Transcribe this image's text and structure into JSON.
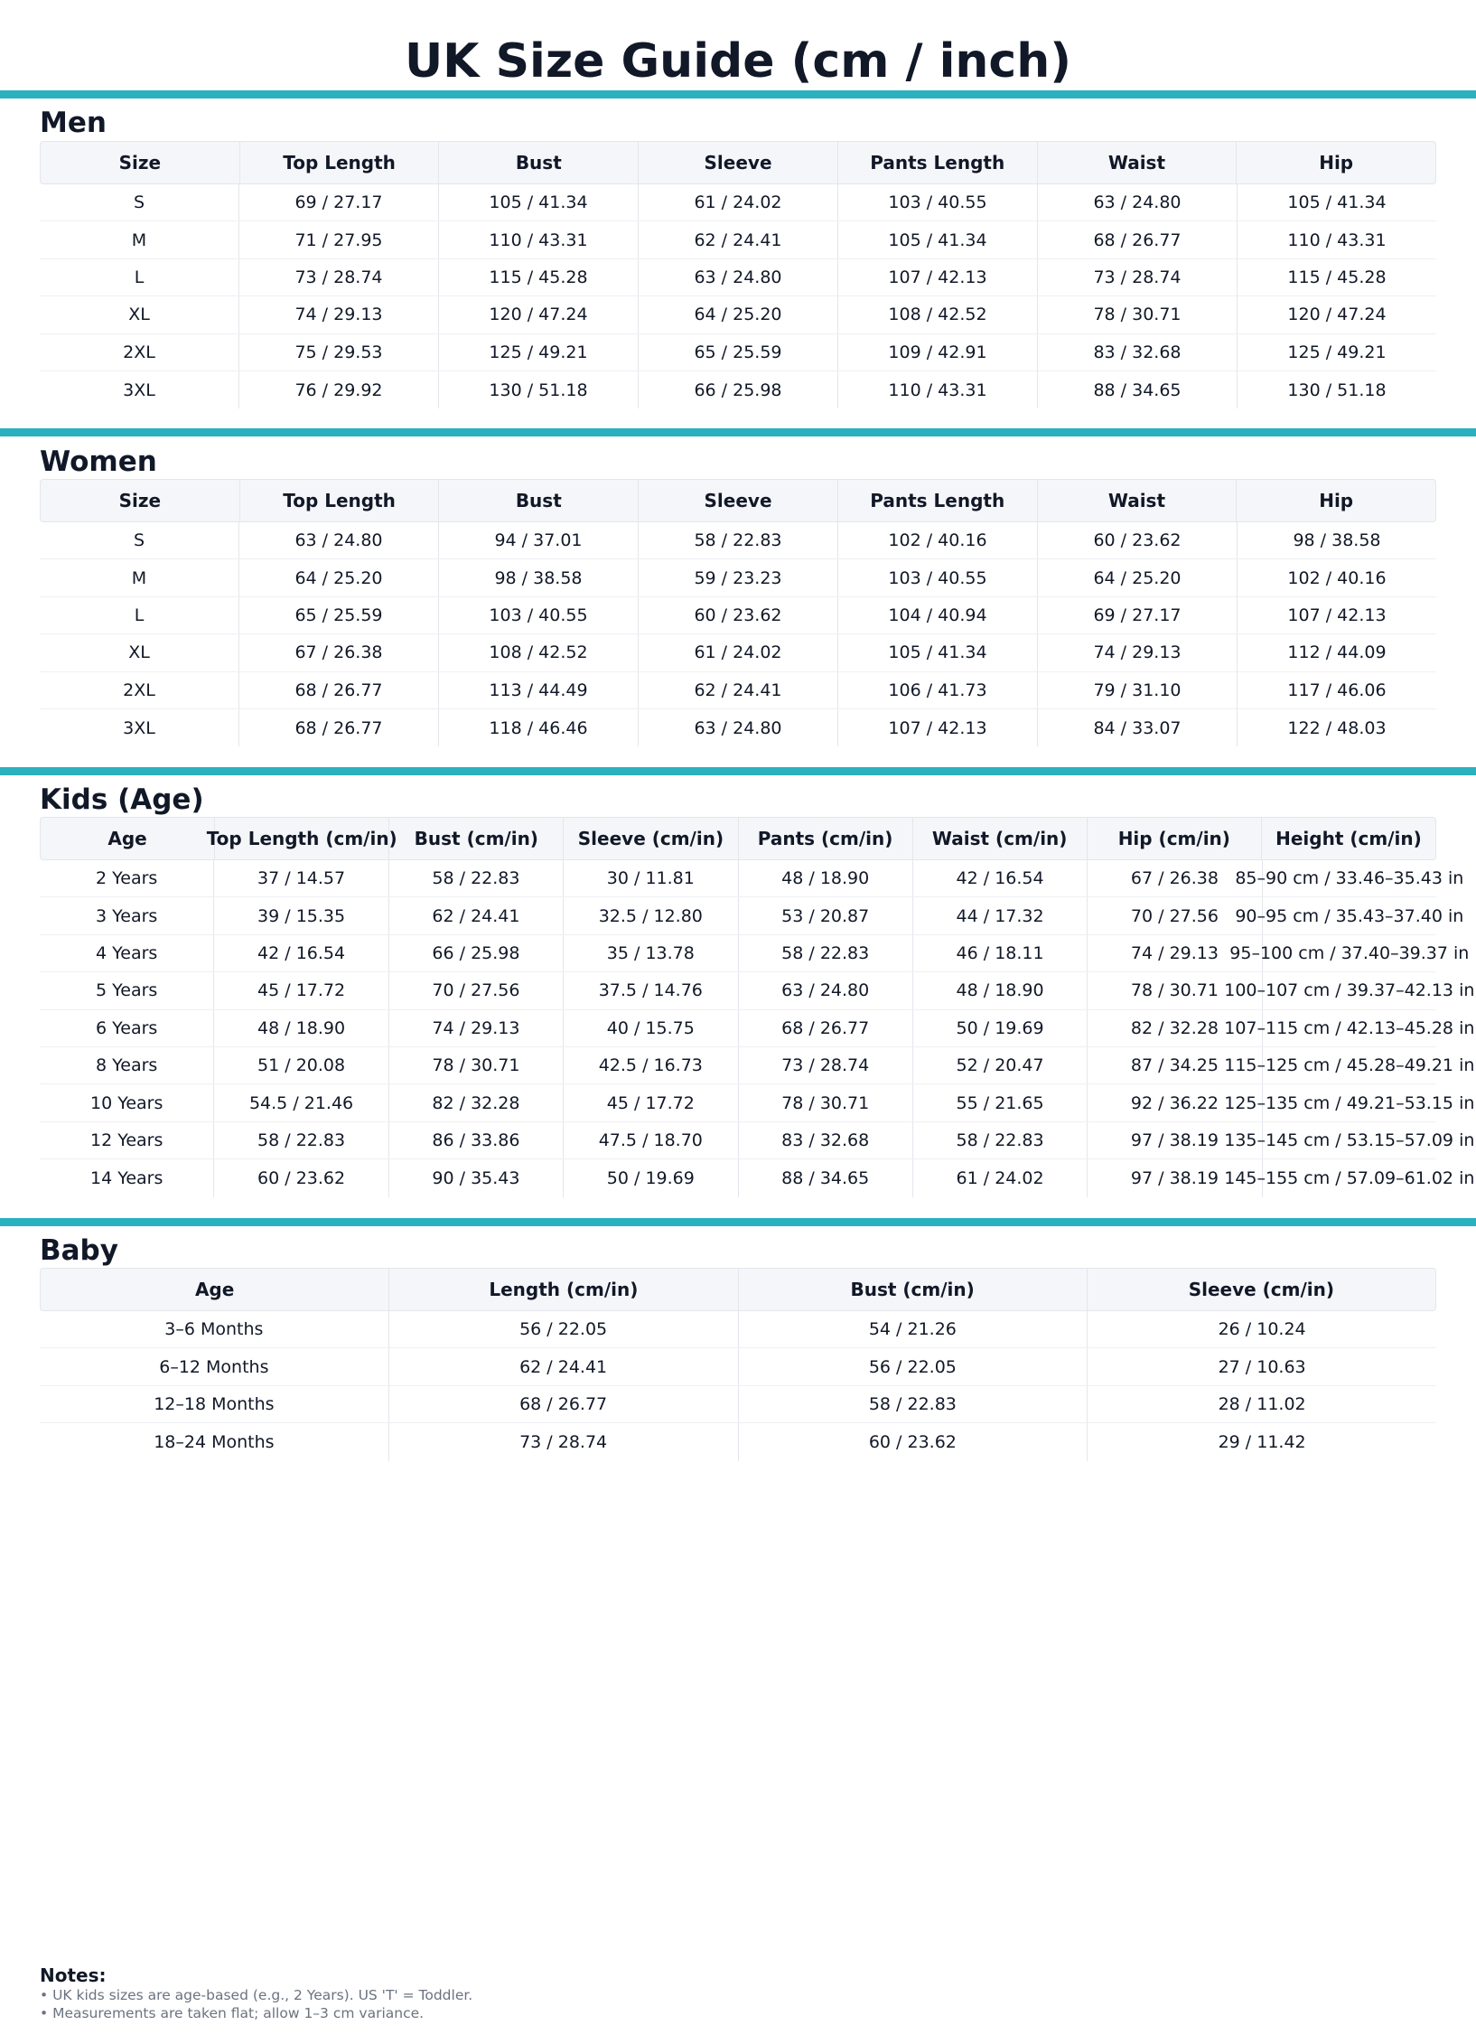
{
  "title": "UK Size Guide (cm / inch)",
  "accent_color": "#2bb0bf",
  "sections": {
    "men": {
      "title": "Men",
      "headers": [
        "Size",
        "Top Length",
        "Bust",
        "Sleeve",
        "Pants Length",
        "Waist",
        "Hip"
      ],
      "rows": [
        [
          "S",
          "69 / 27.17",
          "105 / 41.34",
          "61 / 24.02",
          "103 / 40.55",
          "63 / 24.80",
          "105 / 41.34"
        ],
        [
          "M",
          "71 / 27.95",
          "110 / 43.31",
          "62 / 24.41",
          "105 / 41.34",
          "68 / 26.77",
          "110 / 43.31"
        ],
        [
          "L",
          "73 / 28.74",
          "115 / 45.28",
          "63 / 24.80",
          "107 / 42.13",
          "73 / 28.74",
          "115 / 45.28"
        ],
        [
          "XL",
          "74 / 29.13",
          "120 / 47.24",
          "64 / 25.20",
          "108 / 42.52",
          "78 / 30.71",
          "120 / 47.24"
        ],
        [
          "2XL",
          "75 / 29.53",
          "125 / 49.21",
          "65 / 25.59",
          "109 / 42.91",
          "83 / 32.68",
          "125 / 49.21"
        ],
        [
          "3XL",
          "76 / 29.92",
          "130 / 51.18",
          "66 / 25.98",
          "110 / 43.31",
          "88 / 34.65",
          "130 / 51.18"
        ]
      ]
    },
    "women": {
      "title": "Women",
      "headers": [
        "Size",
        "Top Length",
        "Bust",
        "Sleeve",
        "Pants Length",
        "Waist",
        "Hip"
      ],
      "rows": [
        [
          "S",
          "63 / 24.80",
          "94 / 37.01",
          "58 / 22.83",
          "102 / 40.16",
          "60 / 23.62",
          "98 / 38.58"
        ],
        [
          "M",
          "64 / 25.20",
          "98 / 38.58",
          "59 / 23.23",
          "103 / 40.55",
          "64 / 25.20",
          "102 / 40.16"
        ],
        [
          "L",
          "65 / 25.59",
          "103 / 40.55",
          "60 / 23.62",
          "104 / 40.94",
          "69 / 27.17",
          "107 / 42.13"
        ],
        [
          "XL",
          "67 / 26.38",
          "108 / 42.52",
          "61 / 24.02",
          "105 / 41.34",
          "74 / 29.13",
          "112 / 44.09"
        ],
        [
          "2XL",
          "68 / 26.77",
          "113 / 44.49",
          "62 / 24.41",
          "106 / 41.73",
          "79 / 31.10",
          "117 / 46.06"
        ],
        [
          "3XL",
          "68 / 26.77",
          "118 / 46.46",
          "63 / 24.80",
          "107 / 42.13",
          "84 / 33.07",
          "122 / 48.03"
        ]
      ]
    },
    "kids": {
      "title": "Kids (Age)",
      "headers": [
        "Age",
        "Top Length (cm/in)",
        "Bust (cm/in)",
        "Sleeve (cm/in)",
        "Pants (cm/in)",
        "Waist (cm/in)",
        "Hip (cm/in)",
        "Height (cm/in)"
      ],
      "rows": [
        [
          "2 Years",
          "37 / 14.57",
          "58 / 22.83",
          "30 / 11.81",
          "48 / 18.90",
          "42 / 16.54",
          "67 / 26.38",
          "85–90 cm / 33.46–35.43 in"
        ],
        [
          "3 Years",
          "39 / 15.35",
          "62 / 24.41",
          "32.5 / 12.80",
          "53 / 20.87",
          "44 / 17.32",
          "70 / 27.56",
          "90–95 cm / 35.43–37.40 in"
        ],
        [
          "4 Years",
          "42 / 16.54",
          "66 / 25.98",
          "35 / 13.78",
          "58 / 22.83",
          "46 / 18.11",
          "74 / 29.13",
          "95–100 cm / 37.40–39.37 in"
        ],
        [
          "5 Years",
          "45 / 17.72",
          "70 / 27.56",
          "37.5 / 14.76",
          "63 / 24.80",
          "48 / 18.90",
          "78 / 30.71",
          "100–107 cm / 39.37–42.13 in"
        ],
        [
          "6 Years",
          "48 / 18.90",
          "74 / 29.13",
          "40 / 15.75",
          "68 / 26.77",
          "50 / 19.69",
          "82 / 32.28",
          "107–115 cm / 42.13–45.28 in"
        ],
        [
          "8 Years",
          "51 / 20.08",
          "78 / 30.71",
          "42.5 / 16.73",
          "73 / 28.74",
          "52 / 20.47",
          "87 / 34.25",
          "115–125 cm / 45.28–49.21 in"
        ],
        [
          "10 Years",
          "54.5 / 21.46",
          "82 / 32.28",
          "45 / 17.72",
          "78 / 30.71",
          "55 / 21.65",
          "92 / 36.22",
          "125–135 cm / 49.21–53.15 in"
        ],
        [
          "12 Years",
          "58 / 22.83",
          "86 / 33.86",
          "47.5 / 18.70",
          "83 / 32.68",
          "58 / 22.83",
          "97 / 38.19",
          "135–145 cm / 53.15–57.09 in"
        ],
        [
          "14 Years",
          "60 / 23.62",
          "90 / 35.43",
          "50 / 19.69",
          "88 / 34.65",
          "61 / 24.02",
          "97 / 38.19",
          "145–155 cm / 57.09–61.02 in"
        ]
      ]
    },
    "baby": {
      "title": "Baby",
      "headers": [
        "Age",
        "Length (cm/in)",
        "Bust (cm/in)",
        "Sleeve (cm/in)"
      ],
      "rows": [
        [
          "3–6 Months",
          "56 / 22.05",
          "54 / 21.26",
          "26 / 10.24"
        ],
        [
          "6–12 Months",
          "62 / 24.41",
          "56 / 22.05",
          "27 / 10.63"
        ],
        [
          "12–18 Months",
          "68 / 26.77",
          "58 / 22.83",
          "28 / 11.02"
        ],
        [
          "18–24 Months",
          "73 / 28.74",
          "60 / 23.62",
          "29 / 11.42"
        ]
      ]
    }
  },
  "notes": {
    "heading": "Notes:",
    "lines": [
      "• UK kids sizes are age-based (e.g., 2 Years). US 'T' = Toddler.",
      "• Measurements are taken flat; allow 1–3 cm variance."
    ]
  }
}
